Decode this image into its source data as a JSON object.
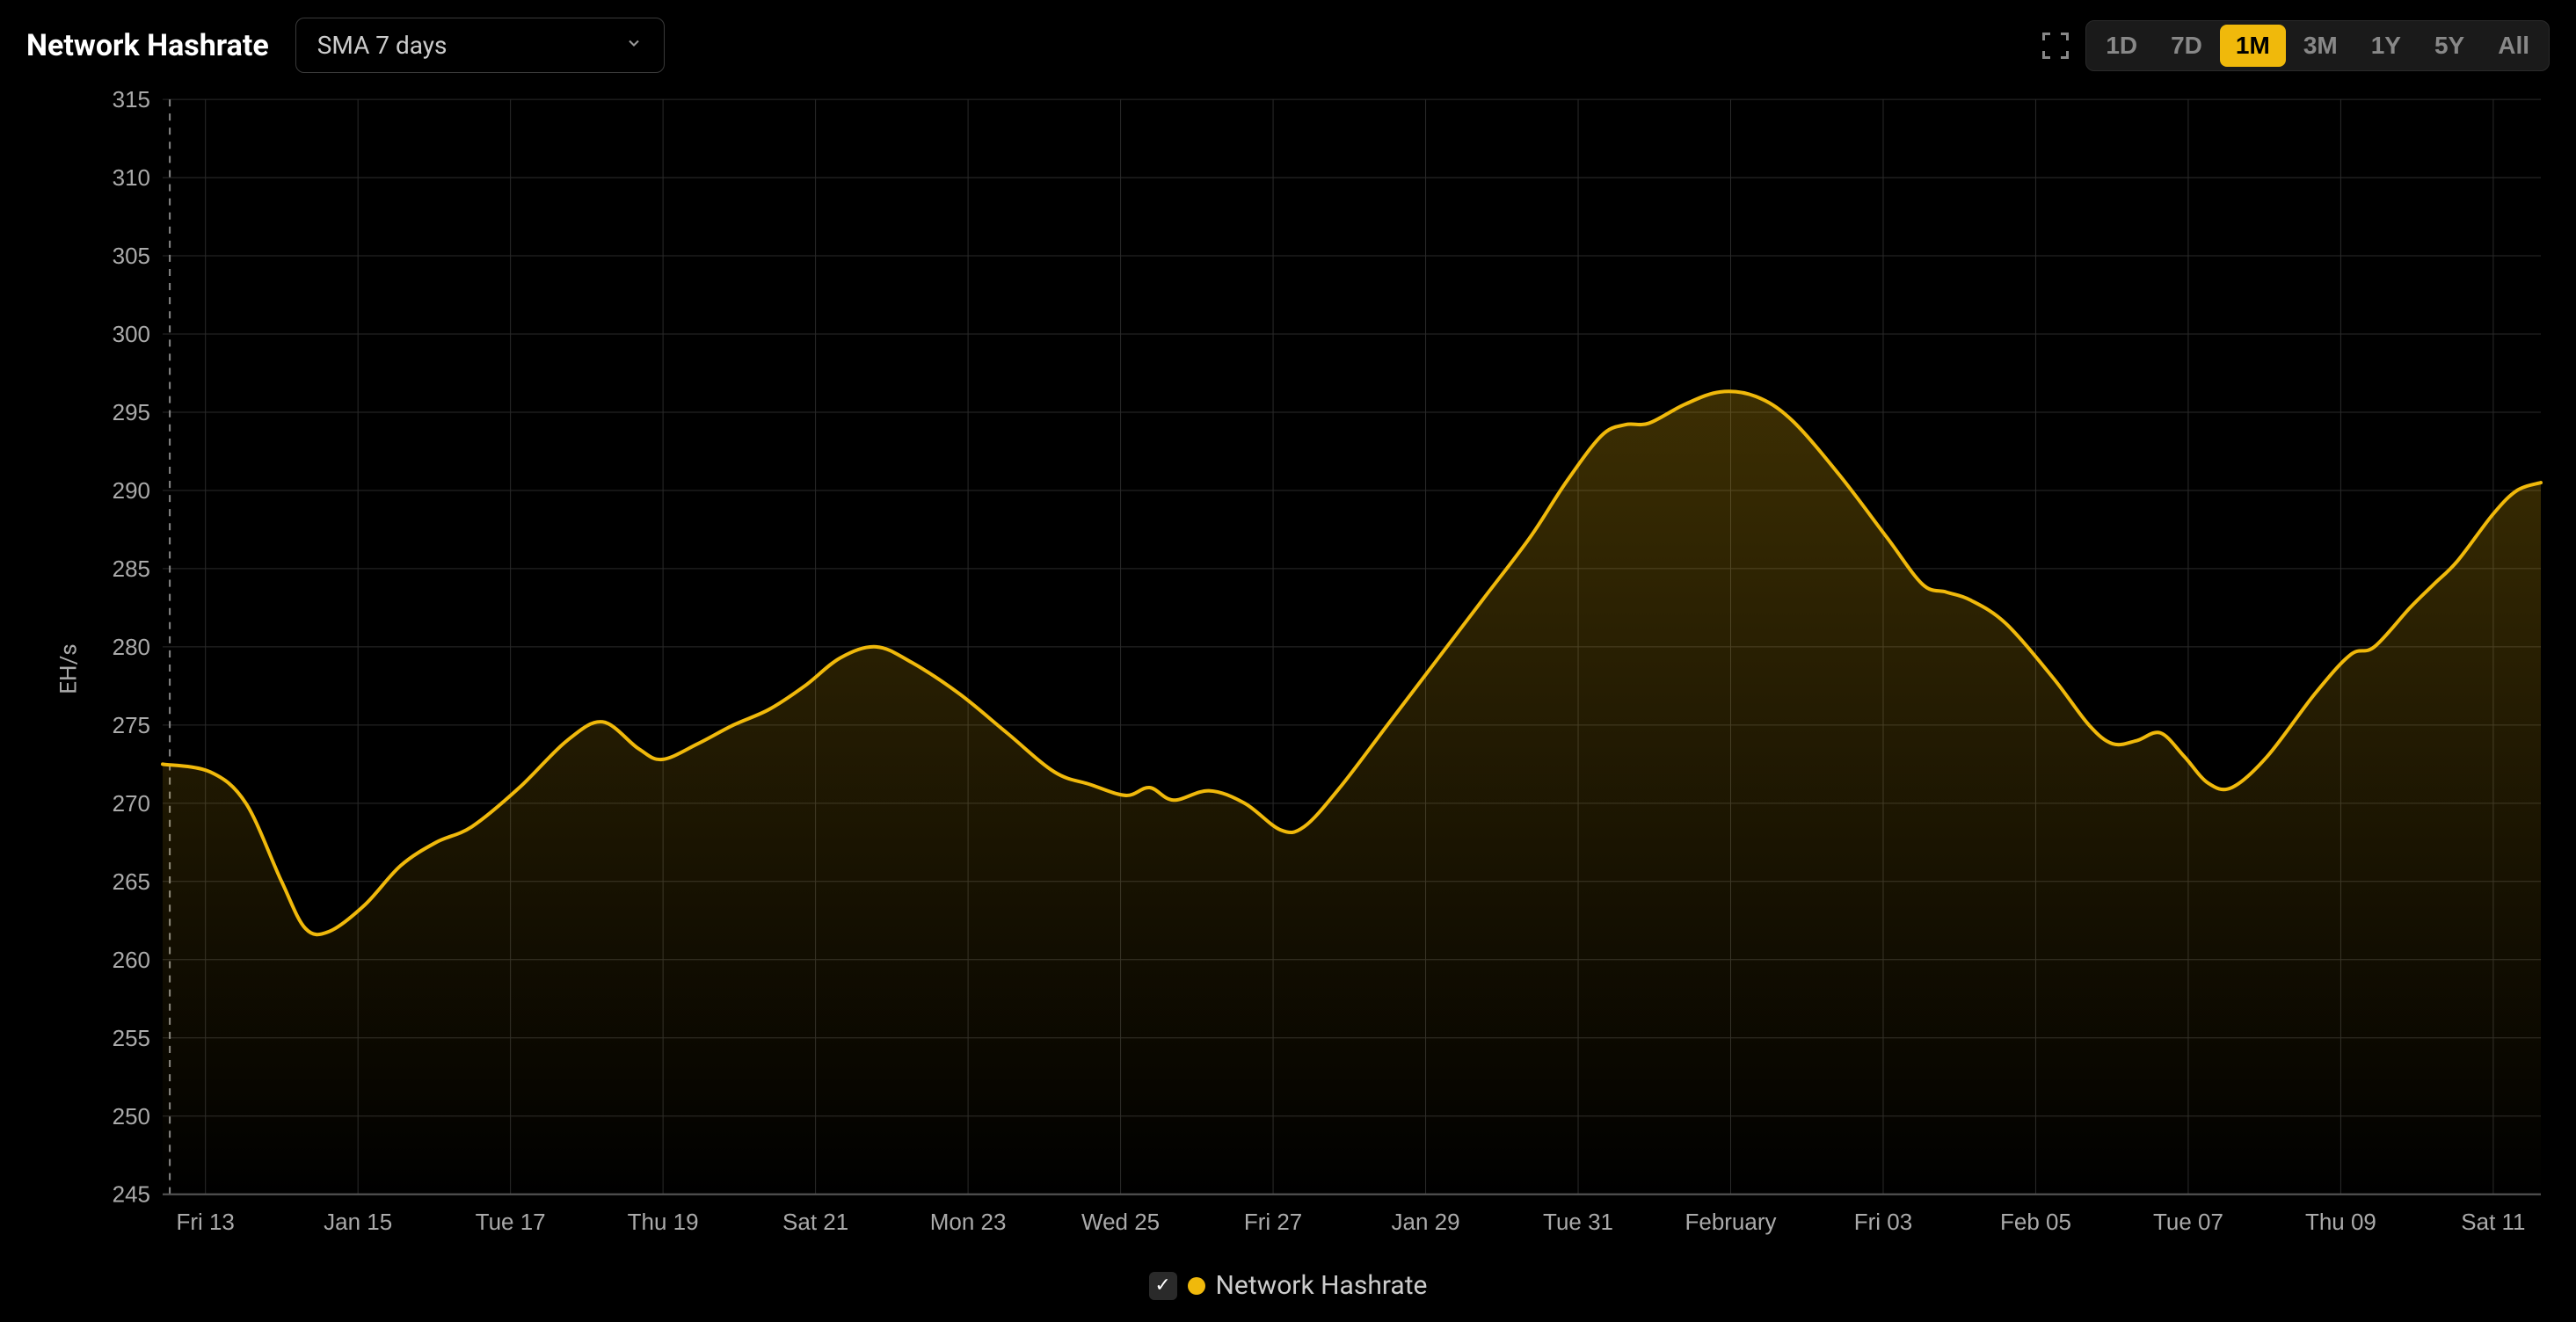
{
  "header": {
    "title": "Network Hashrate",
    "dropdown_label": "SMA 7 days",
    "ranges": [
      {
        "label": "1D",
        "active": false
      },
      {
        "label": "7D",
        "active": false
      },
      {
        "label": "1M",
        "active": true
      },
      {
        "label": "3M",
        "active": false
      },
      {
        "label": "1Y",
        "active": false
      },
      {
        "label": "5Y",
        "active": false
      },
      {
        "label": "All",
        "active": false
      }
    ]
  },
  "chart": {
    "type": "area",
    "y_axis_label": "EH/s",
    "ylim": [
      245,
      315
    ],
    "ytick_step": 5,
    "yticks": [
      245,
      250,
      255,
      260,
      265,
      270,
      275,
      280,
      285,
      290,
      295,
      300,
      305,
      310,
      315
    ],
    "xticks": [
      "Fri 13",
      "Jan 15",
      "Tue 17",
      "Thu 19",
      "Sat 21",
      "Mon 23",
      "Wed 25",
      "Fri 27",
      "Jan 29",
      "Tue 31",
      "February",
      "Fri 03",
      "Feb 05",
      "Tue 07",
      "Thu 09",
      "Sat 11"
    ],
    "line_color": "#f0b90b",
    "line_width": 4,
    "fill_top_color": "#f0b90b",
    "fill_top_opacity": 0.25,
    "fill_bottom_color": "#f0b90b",
    "fill_bottom_opacity": 0.0,
    "background_color": "#000000",
    "grid_color": "#2a2a2a",
    "axis_label_color": "#aaaaaa",
    "axis_label_fontsize": 26,
    "dashed_line_x": 0.0,
    "data_points": [
      {
        "x": 0.0,
        "y": 272.5
      },
      {
        "x": 0.02,
        "y": 272.0
      },
      {
        "x": 0.035,
        "y": 270.0
      },
      {
        "x": 0.05,
        "y": 265.0
      },
      {
        "x": 0.06,
        "y": 262.0
      },
      {
        "x": 0.07,
        "y": 261.8
      },
      {
        "x": 0.085,
        "y": 263.5
      },
      {
        "x": 0.1,
        "y": 266.0
      },
      {
        "x": 0.115,
        "y": 267.5
      },
      {
        "x": 0.13,
        "y": 268.5
      },
      {
        "x": 0.15,
        "y": 271.0
      },
      {
        "x": 0.17,
        "y": 274.0
      },
      {
        "x": 0.185,
        "y": 275.2
      },
      {
        "x": 0.2,
        "y": 273.5
      },
      {
        "x": 0.21,
        "y": 272.8
      },
      {
        "x": 0.225,
        "y": 273.8
      },
      {
        "x": 0.24,
        "y": 275.0
      },
      {
        "x": 0.255,
        "y": 276.0
      },
      {
        "x": 0.27,
        "y": 277.5
      },
      {
        "x": 0.285,
        "y": 279.3
      },
      {
        "x": 0.3,
        "y": 280.0
      },
      {
        "x": 0.315,
        "y": 279.0
      },
      {
        "x": 0.335,
        "y": 277.0
      },
      {
        "x": 0.355,
        "y": 274.5
      },
      {
        "x": 0.375,
        "y": 272.0
      },
      {
        "x": 0.39,
        "y": 271.2
      },
      {
        "x": 0.405,
        "y": 270.5
      },
      {
        "x": 0.415,
        "y": 271.0
      },
      {
        "x": 0.425,
        "y": 270.2
      },
      {
        "x": 0.44,
        "y": 270.8
      },
      {
        "x": 0.455,
        "y": 270.0
      },
      {
        "x": 0.47,
        "y": 268.3
      },
      {
        "x": 0.48,
        "y": 268.5
      },
      {
        "x": 0.495,
        "y": 271.0
      },
      {
        "x": 0.515,
        "y": 275.0
      },
      {
        "x": 0.535,
        "y": 279.0
      },
      {
        "x": 0.555,
        "y": 283.0
      },
      {
        "x": 0.575,
        "y": 287.0
      },
      {
        "x": 0.59,
        "y": 290.5
      },
      {
        "x": 0.605,
        "y": 293.5
      },
      {
        "x": 0.615,
        "y": 294.2
      },
      {
        "x": 0.625,
        "y": 294.3
      },
      {
        "x": 0.64,
        "y": 295.5
      },
      {
        "x": 0.655,
        "y": 296.3
      },
      {
        "x": 0.67,
        "y": 296.0
      },
      {
        "x": 0.685,
        "y": 294.5
      },
      {
        "x": 0.705,
        "y": 291.0
      },
      {
        "x": 0.725,
        "y": 287.0
      },
      {
        "x": 0.74,
        "y": 284.0
      },
      {
        "x": 0.75,
        "y": 283.5
      },
      {
        "x": 0.76,
        "y": 283.0
      },
      {
        "x": 0.775,
        "y": 281.5
      },
      {
        "x": 0.795,
        "y": 278.0
      },
      {
        "x": 0.81,
        "y": 275.0
      },
      {
        "x": 0.82,
        "y": 273.8
      },
      {
        "x": 0.83,
        "y": 274.0
      },
      {
        "x": 0.84,
        "y": 274.5
      },
      {
        "x": 0.85,
        "y": 273.0
      },
      {
        "x": 0.86,
        "y": 271.3
      },
      {
        "x": 0.87,
        "y": 271.0
      },
      {
        "x": 0.885,
        "y": 273.0
      },
      {
        "x": 0.905,
        "y": 277.0
      },
      {
        "x": 0.92,
        "y": 279.5
      },
      {
        "x": 0.93,
        "y": 280.0
      },
      {
        "x": 0.945,
        "y": 282.5
      },
      {
        "x": 0.955,
        "y": 284.0
      },
      {
        "x": 0.965,
        "y": 285.5
      },
      {
        "x": 0.98,
        "y": 288.5
      },
      {
        "x": 0.99,
        "y": 290.0
      },
      {
        "x": 1.0,
        "y": 290.5
      }
    ]
  },
  "legend": {
    "checked": true,
    "dot_color": "#f0b90b",
    "label": "Network Hashrate"
  }
}
